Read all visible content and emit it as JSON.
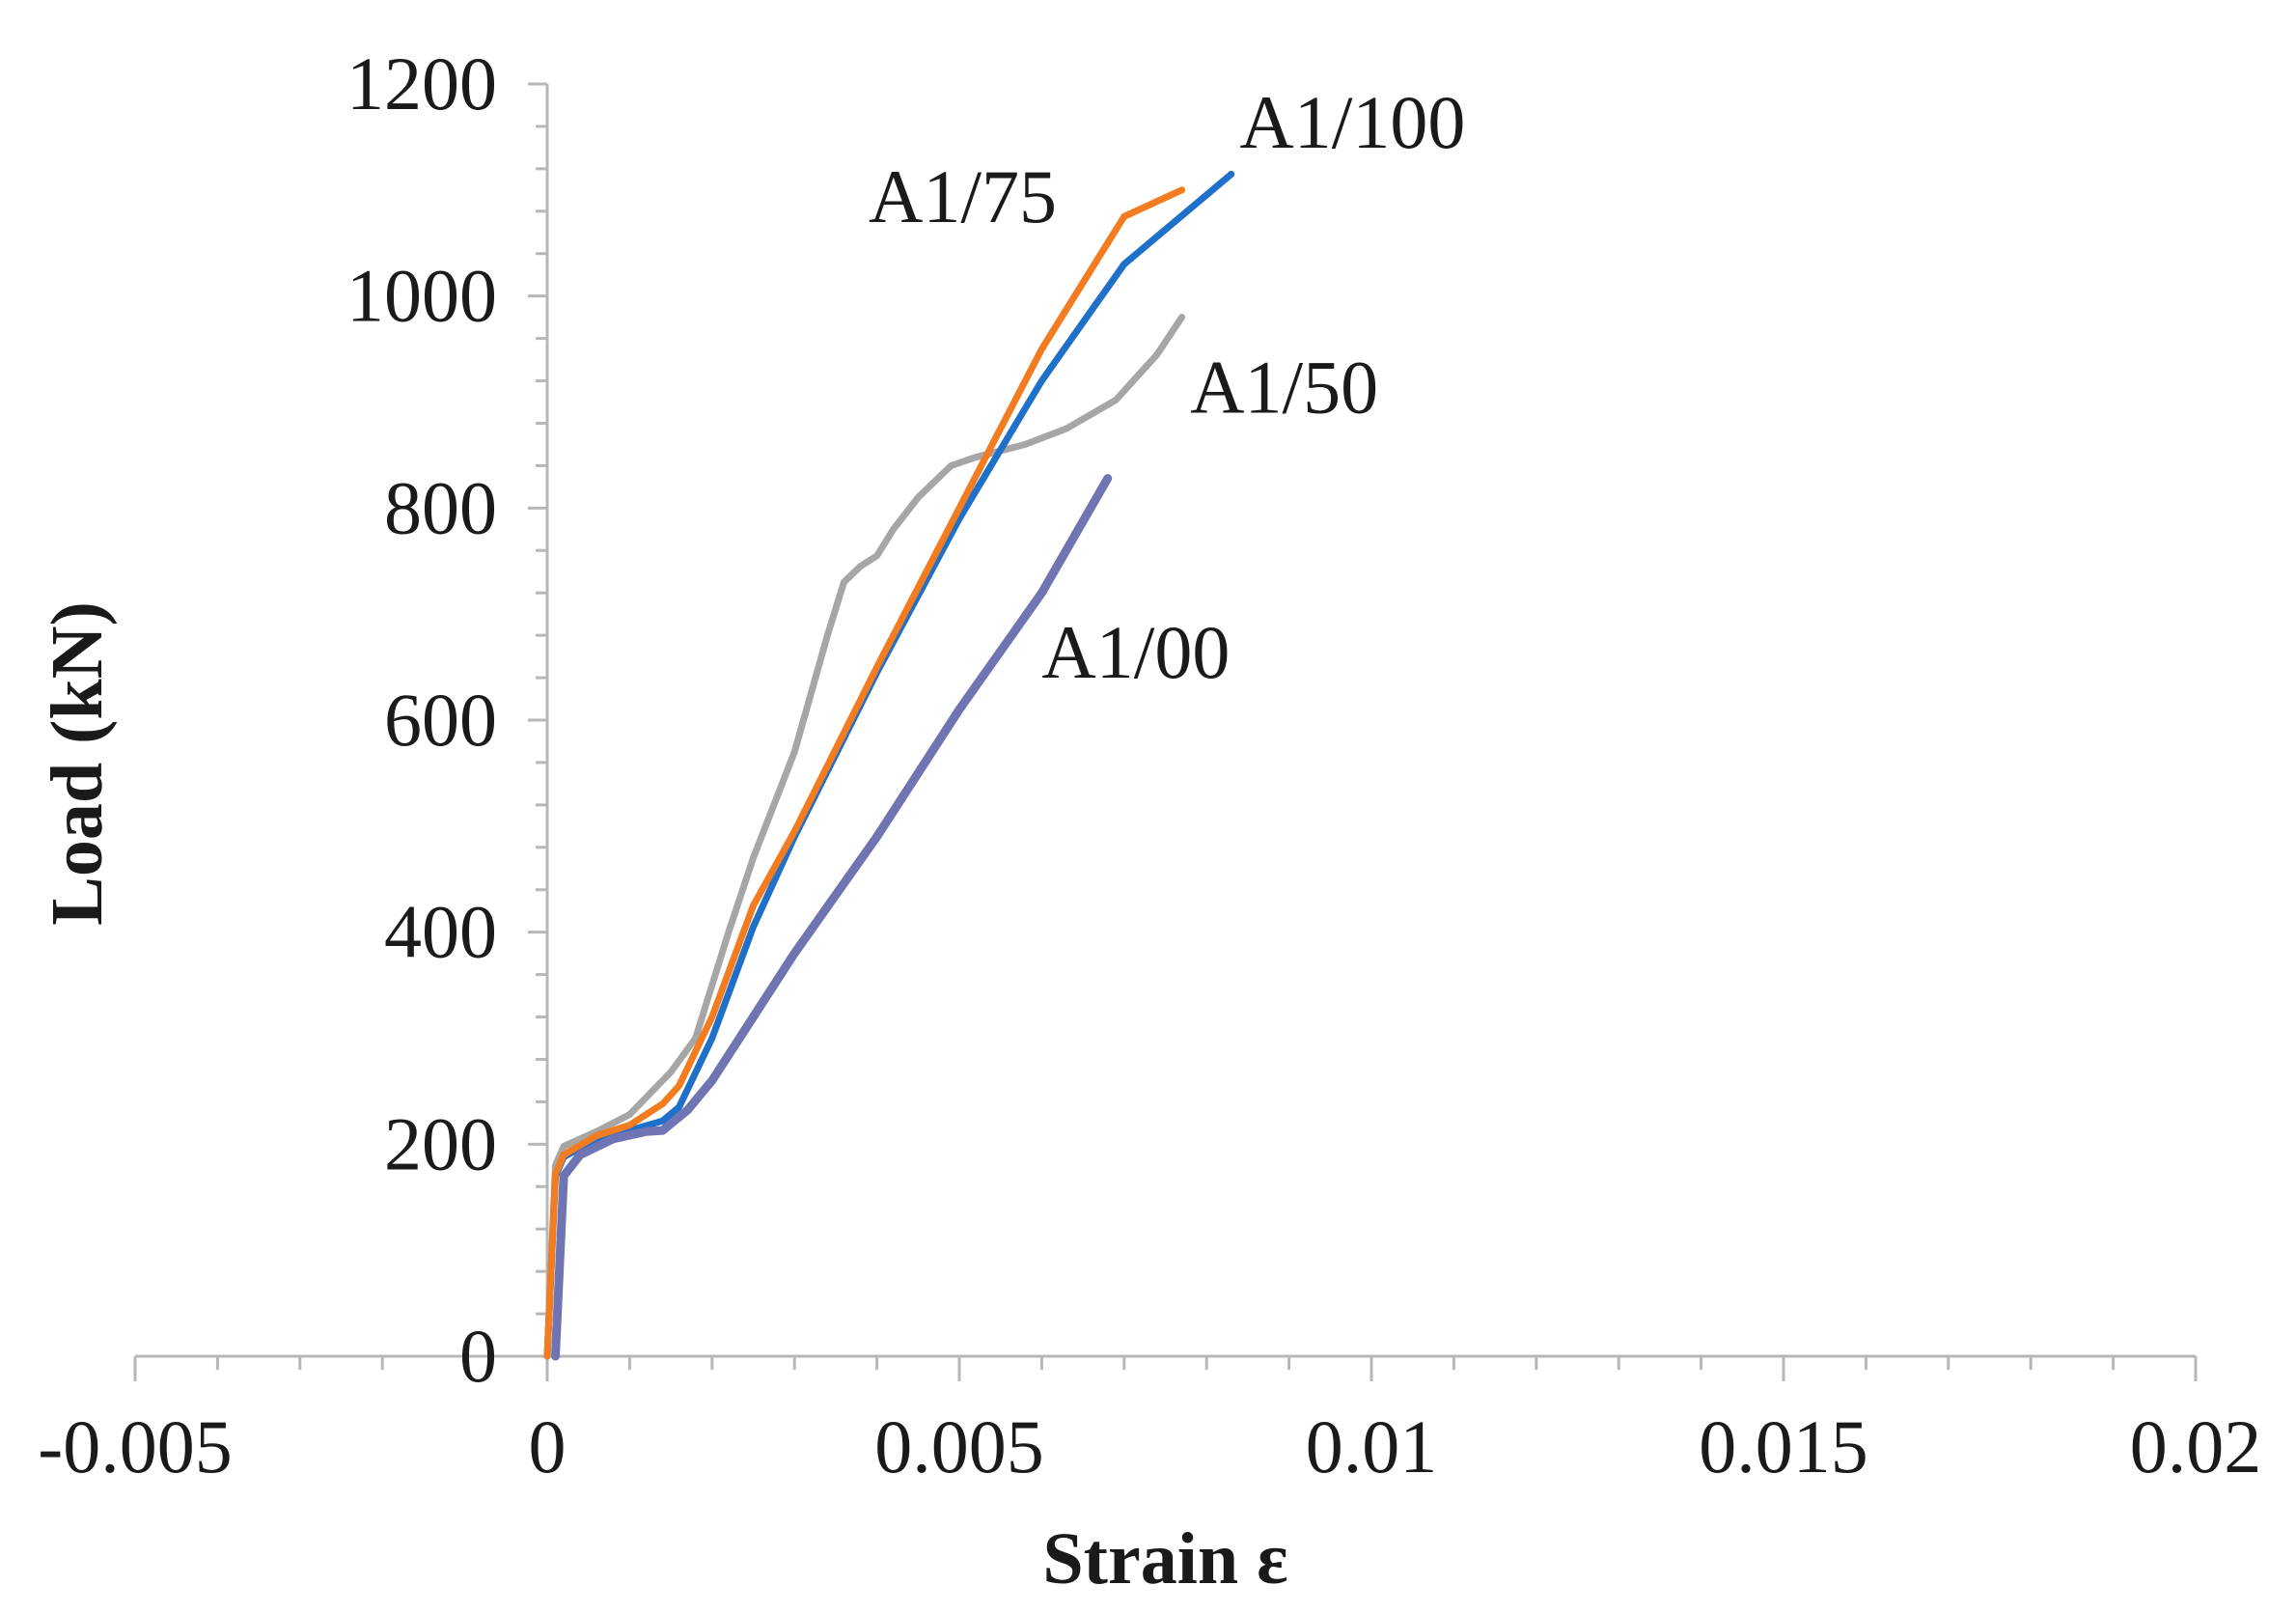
{
  "chart_data": {
    "type": "line",
    "title": "",
    "xlabel": "Strain ε",
    "ylabel": "Load (kN)",
    "xlim": [
      -0.005,
      0.02
    ],
    "ylim": [
      0,
      1200
    ],
    "x_ticks": [
      "-0.005",
      "0",
      "0.005",
      "0.01",
      "0.015",
      "0.02"
    ],
    "y_ticks": [
      "0",
      "200",
      "400",
      "600",
      "800",
      "1000",
      "1200"
    ],
    "grid": false,
    "legend": "none",
    "series": [
      {
        "name": "A1/50",
        "color": "#a6a6a6",
        "points": [
          [
            0.0,
            0
          ],
          [
            0.0001,
            180
          ],
          [
            0.0002,
            198
          ],
          [
            0.0006,
            212
          ],
          [
            0.001,
            228
          ],
          [
            0.0015,
            268
          ],
          [
            0.0018,
            300
          ],
          [
            0.002,
            350
          ],
          [
            0.0022,
            400
          ],
          [
            0.0025,
            470
          ],
          [
            0.003,
            570
          ],
          [
            0.0034,
            680
          ],
          [
            0.0036,
            730
          ],
          [
            0.0038,
            745
          ],
          [
            0.004,
            755
          ],
          [
            0.0042,
            780
          ],
          [
            0.0045,
            810
          ],
          [
            0.0049,
            840
          ],
          [
            0.0052,
            848
          ],
          [
            0.0058,
            860
          ],
          [
            0.0063,
            875
          ],
          [
            0.0069,
            902
          ],
          [
            0.0074,
            945
          ],
          [
            0.0077,
            980
          ]
        ]
      },
      {
        "name": "A1/100",
        "color": "#1f70c8",
        "points": [
          [
            0.0,
            0
          ],
          [
            0.0001,
            170
          ],
          [
            0.0002,
            188
          ],
          [
            0.0006,
            205
          ],
          [
            0.001,
            213
          ],
          [
            0.0014,
            222
          ],
          [
            0.0016,
            235
          ],
          [
            0.002,
            300
          ],
          [
            0.0025,
            405
          ],
          [
            0.003,
            490
          ],
          [
            0.004,
            645
          ],
          [
            0.005,
            790
          ],
          [
            0.006,
            920
          ],
          [
            0.007,
            1030
          ],
          [
            0.0083,
            1115
          ]
        ]
      },
      {
        "name": "A1/75",
        "color": "#f47c20",
        "points": [
          [
            0.0,
            0
          ],
          [
            0.0001,
            172
          ],
          [
            0.0002,
            190
          ],
          [
            0.0006,
            208
          ],
          [
            0.001,
            218
          ],
          [
            0.0014,
            238
          ],
          [
            0.0016,
            255
          ],
          [
            0.002,
            320
          ],
          [
            0.0025,
            425
          ],
          [
            0.003,
            495
          ],
          [
            0.004,
            650
          ],
          [
            0.005,
            800
          ],
          [
            0.006,
            950
          ],
          [
            0.007,
            1075
          ],
          [
            0.0077,
            1100
          ]
        ]
      },
      {
        "name": "A1/00",
        "color": "#6f74b2",
        "points": [
          [
            0.0001,
            0
          ],
          [
            0.0002,
            170
          ],
          [
            0.0004,
            190
          ],
          [
            0.0008,
            205
          ],
          [
            0.0012,
            212
          ],
          [
            0.0014,
            213
          ],
          [
            0.0017,
            232
          ],
          [
            0.002,
            260
          ],
          [
            0.0025,
            320
          ],
          [
            0.003,
            380
          ],
          [
            0.004,
            490
          ],
          [
            0.005,
            610
          ],
          [
            0.006,
            720
          ],
          [
            0.0068,
            828
          ]
        ]
      }
    ],
    "annotations": [
      {
        "text": "A1/100",
        "x": 0.0084,
        "y": 1140
      },
      {
        "text": "A1/75",
        "x": 0.0039,
        "y": 1070
      },
      {
        "text": "A1/50",
        "x": 0.0078,
        "y": 890
      },
      {
        "text": "A1/00",
        "x": 0.006,
        "y": 640
      }
    ]
  }
}
